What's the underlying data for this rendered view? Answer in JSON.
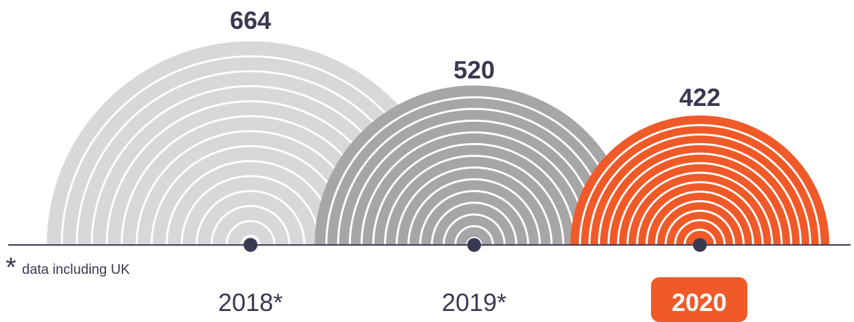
{
  "chart_data": {
    "type": "bar",
    "categories": [
      "2018*",
      "2019*",
      "2020"
    ],
    "values": [
      664,
      520,
      422
    ],
    "value_labels": [
      "664",
      "520",
      "422"
    ],
    "highlighted_category": "2020",
    "footnote_marker": "*",
    "footnote_text": "data including UK",
    "colors": {
      "2018*": "#d9d8d8",
      "2019*": "#a6a6a6",
      "2020": "#f05a28",
      "axis": "#3a3952",
      "text": "#3a3952",
      "ring_stroke": "#ffffff"
    },
    "title": "",
    "xlabel": "",
    "ylabel": ""
  }
}
